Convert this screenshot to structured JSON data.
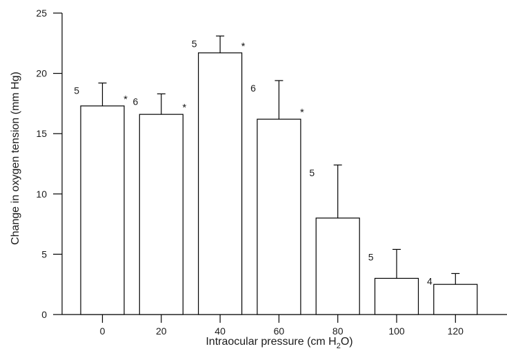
{
  "chart_data": {
    "type": "bar",
    "xlabel": "Intraocular pressure (cm H",
    "xlabel_sub": "2",
    "xlabel_end": "O)",
    "ylabel": "Change in oxygen tension (mm Hg)",
    "categories": [
      "0",
      "20",
      "40",
      "60",
      "80",
      "100",
      "120"
    ],
    "values": [
      17.3,
      16.6,
      21.7,
      16.2,
      8.0,
      3.0,
      2.5
    ],
    "errors": [
      1.9,
      1.7,
      1.4,
      3.2,
      4.4,
      2.4,
      0.9
    ],
    "n": [
      "5",
      "6",
      "5",
      "6",
      "5",
      "5",
      "4"
    ],
    "significant": [
      "*",
      "*",
      "*",
      "*",
      "",
      "",
      ""
    ],
    "ylim": [
      0,
      25
    ],
    "yticks": [
      "0",
      "5",
      "10",
      "15",
      "20",
      "25"
    ],
    "grid": false,
    "bar_fill": "#ffffff",
    "bar_stroke": "#000000"
  }
}
